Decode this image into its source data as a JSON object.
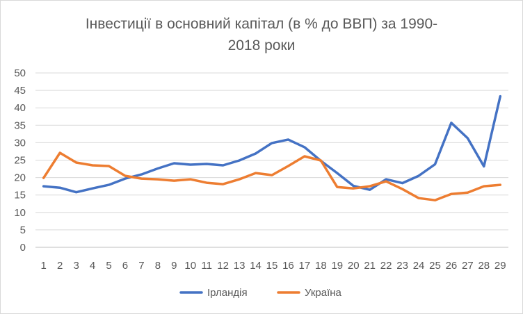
{
  "chart_data": {
    "type": "line",
    "title_lines": [
      "Інвестиції в основний капітал (в % до ВВП) за 1990-",
      "2018 роки"
    ],
    "xlabel": "",
    "ylabel": "",
    "x": [
      1,
      2,
      3,
      4,
      5,
      6,
      7,
      8,
      9,
      10,
      11,
      12,
      13,
      14,
      15,
      16,
      17,
      18,
      19,
      20,
      21,
      22,
      23,
      24,
      25,
      26,
      27,
      28,
      29
    ],
    "x_tick_labels": [
      "1",
      "2",
      "3",
      "4",
      "5",
      "6",
      "7",
      "8",
      "9",
      "10",
      "11",
      "12",
      "13",
      "14",
      "15",
      "16",
      "17",
      "18",
      "19",
      "20",
      "21",
      "22",
      "23",
      "24",
      "25",
      "26",
      "27",
      "28",
      "29"
    ],
    "ylim": [
      0,
      50
    ],
    "y_ticks": [
      0,
      5,
      10,
      15,
      20,
      25,
      30,
      35,
      40,
      45,
      50
    ],
    "grid": "horizontal",
    "legend_position": "bottom",
    "series": [
      {
        "name": "Ірландія",
        "color": "#4472c4",
        "values": [
          17.5,
          17.1,
          15.8,
          16.9,
          17.9,
          19.7,
          20.9,
          22.6,
          24.1,
          23.7,
          23.9,
          23.5,
          24.9,
          26.9,
          29.9,
          30.9,
          28.7,
          24.8,
          21.3,
          17.6,
          16.5,
          19.5,
          18.4,
          20.5,
          23.8,
          35.7,
          31.3,
          23.2,
          43.3
        ]
      },
      {
        "name": "Україна",
        "color": "#ed7d31",
        "values": [
          19.9,
          27.1,
          24.3,
          23.5,
          23.3,
          20.5,
          19.7,
          19.5,
          19.1,
          19.5,
          18.5,
          18.1,
          19.5,
          21.3,
          20.7,
          23.3,
          26.1,
          24.9,
          17.3,
          16.9,
          17.5,
          18.9,
          16.7,
          14.1,
          13.5,
          15.3,
          15.7,
          17.5,
          17.9
        ]
      }
    ]
  }
}
